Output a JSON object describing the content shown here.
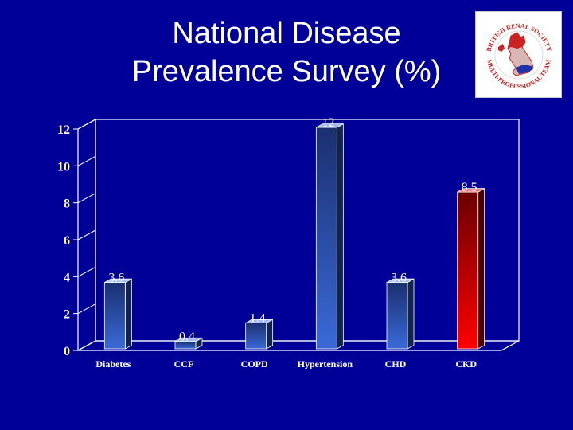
{
  "slide": {
    "title_line1": "National Disease",
    "title_line2": "Prevalence Survey (%)"
  },
  "logo": {
    "text_top": "BRITISH RENAL SOCIETY",
    "text_bottom": "MULTI-PROFESSIONAL TEAM",
    "colors": {
      "red": "#cc2222",
      "blue": "#2233aa",
      "map_gray": "#e8c8c8"
    }
  },
  "chart_data": {
    "type": "bar",
    "categories": [
      "Diabetes",
      "CCF",
      "COPD",
      "Hypertension",
      "CHD",
      "CKD"
    ],
    "values": [
      3.6,
      0.4,
      1.4,
      12,
      3.6,
      8.5
    ],
    "data_labels": [
      "3.6",
      "0.4",
      "1.4",
      "12",
      "3.6",
      "8.5"
    ],
    "ylim": [
      0,
      12
    ],
    "yticks": [
      "0",
      "2",
      "4",
      "6",
      "8",
      "10",
      "12"
    ],
    "grid": false,
    "three_d": true,
    "colors": {
      "background": "#000099",
      "bar_blue_top": "#1a2f6e",
      "bar_blue_bottom": "#3a6ad8",
      "bar_red_top": "#6a0000",
      "bar_red_bottom": "#ff0000",
      "axis": "#ffffff"
    }
  }
}
